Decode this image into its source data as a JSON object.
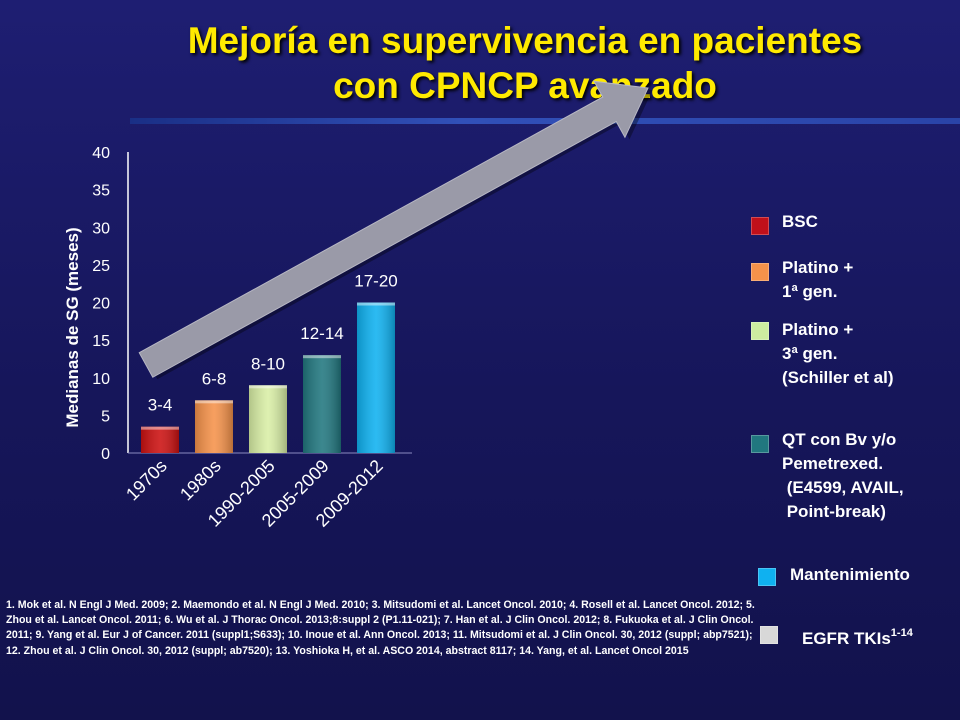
{
  "title": {
    "line1": "Mejoría en supervivencia en pacientes",
    "line2": "con CPNCP avanzado"
  },
  "colors": {
    "background": "#17175f",
    "title": "#ffea00",
    "arrow": "#9a9aa8"
  },
  "chart_data": {
    "type": "bar",
    "categories": [
      "1970s",
      "1980s",
      "1990-2005",
      "2005-2009",
      "2009-2012"
    ],
    "values": [
      3.5,
      7,
      9,
      13,
      20
    ],
    "data_labels": [
      "3-4",
      "6-8",
      "8-10",
      "12-14",
      "17-20"
    ],
    "bar_colors": [
      "#cc1111",
      "#f5924a",
      "#d9efa6",
      "#21777f",
      "#0fb1f0"
    ],
    "ylabel": "Medianas de SG (meses)",
    "xlabel": "",
    "ylim": [
      0,
      40
    ],
    "yticks": [
      0,
      5,
      10,
      15,
      20,
      25,
      30,
      35,
      40
    ],
    "grid": false,
    "legend_position": "right",
    "trend_arrow": "upward"
  },
  "legend": [
    {
      "label": "BSC",
      "color": "#c0101a"
    },
    {
      "label": "Platino +\n1ª gen.",
      "color": "#f5924a"
    },
    {
      "label": "Platino +\n3ª gen.\n(Schiller et al)",
      "color": "#cdeca0"
    },
    {
      "label": "QT con Bv y/o\nPemetrexed.\n (E4599, AVAIL,\n Point-break)",
      "color": "#21777f"
    },
    {
      "label": "Mantenimiento",
      "color": "#0fb1f0"
    },
    {
      "label": "EGFR TKIs",
      "sup": "1-14",
      "color": "#d8d8d8"
    }
  ],
  "references": "1. Mok et al. N Engl J Med. 2009; 2. Maemondo et al. N Engl J Med. 2010; 3. Mitsudomi et al. Lancet Oncol. 2010; 4. Rosell et al. Lancet Oncol. 2012; 5. Zhou et al. Lancet Oncol. 2011; 6. Wu et al. J Thorac Oncol. 2013;8:suppl 2 (P1.11-021); 7. Han et al. J Clin Oncol. 2012; 8. Fukuoka et al. J Clin Oncol. 2011; 9. Yang et al. Eur J of Cancer. 2011 (suppl1;S633); 10. Inoue et al. Ann Oncol. 2013; 11. Mitsudomi et al. J Clin Oncol. 30, 2012 (suppl; abp7521); 12. Zhou et al. J Clin Oncol. 30, 2012 (suppl; ab7520); 13. Yoshioka H, et al. ASCO 2014, abstract 8117; 14. Yang, et al. Lancet Oncol 2015"
}
